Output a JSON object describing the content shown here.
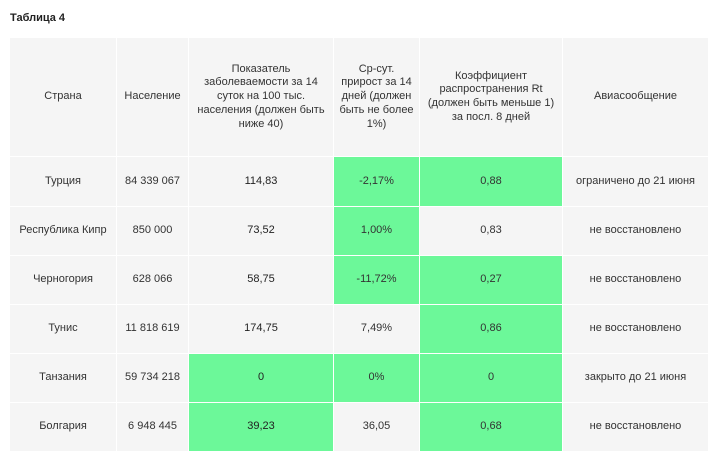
{
  "caption": "Таблица 4",
  "colors": {
    "cell_bg": "#f5f5f5",
    "highlight_green": "#6cf899"
  },
  "headers": [
    "Страна",
    "Население",
    "Показатель заболеваемости за 14 суток на 100 тыс. населения (должен быть ниже 40)",
    "Ср-сут. прирост за 14 дней (должен быть не более 1%)",
    "Коэффициент распространения Rt (должен быть меньше 1) за посл. 8 дней",
    "Авиасообщение"
  ],
  "rows": [
    {
      "country": "Турция",
      "population": "84 339 067",
      "incidence": "114,83",
      "growth": "-2,17%",
      "rt": "0,88",
      "flights": "ограничено до 21 июня",
      "green_population": false,
      "green_incidence": false,
      "green_growth": true,
      "green_rt": true
    },
    {
      "country": "Республика Кипр",
      "population": "850 000",
      "incidence": "73,52",
      "growth": "1,00%",
      "rt": "0,83",
      "flights": "не восстановлено",
      "green_population": false,
      "green_incidence": false,
      "green_growth": true,
      "green_rt": false
    },
    {
      "country": "Черногория",
      "population": "628 066",
      "incidence": "58,75",
      "growth": "-11,72%",
      "rt": "0,27",
      "flights": "не восстановлено",
      "green_population": false,
      "green_incidence": false,
      "green_growth": true,
      "green_rt": true
    },
    {
      "country": "Тунис",
      "population": "11 818 619",
      "incidence": "174,75",
      "growth": "7,49%",
      "rt": "0,86",
      "flights": "не восстановлено",
      "green_population": false,
      "green_incidence": false,
      "green_growth": false,
      "green_rt": true
    },
    {
      "country": "Танзания",
      "population": "59 734 218",
      "incidence": "0",
      "growth": "0%",
      "rt": "0",
      "flights": "закрыто до 21 июня",
      "green_population": false,
      "green_incidence": true,
      "green_growth": true,
      "green_rt": true
    },
    {
      "country": "Болгария",
      "population": "6 948 445",
      "incidence": "39,23",
      "growth": "36,05",
      "rt": "0,68",
      "flights": "не восстановлено",
      "green_population": false,
      "green_incidence": true,
      "green_growth": false,
      "green_rt": true
    }
  ]
}
